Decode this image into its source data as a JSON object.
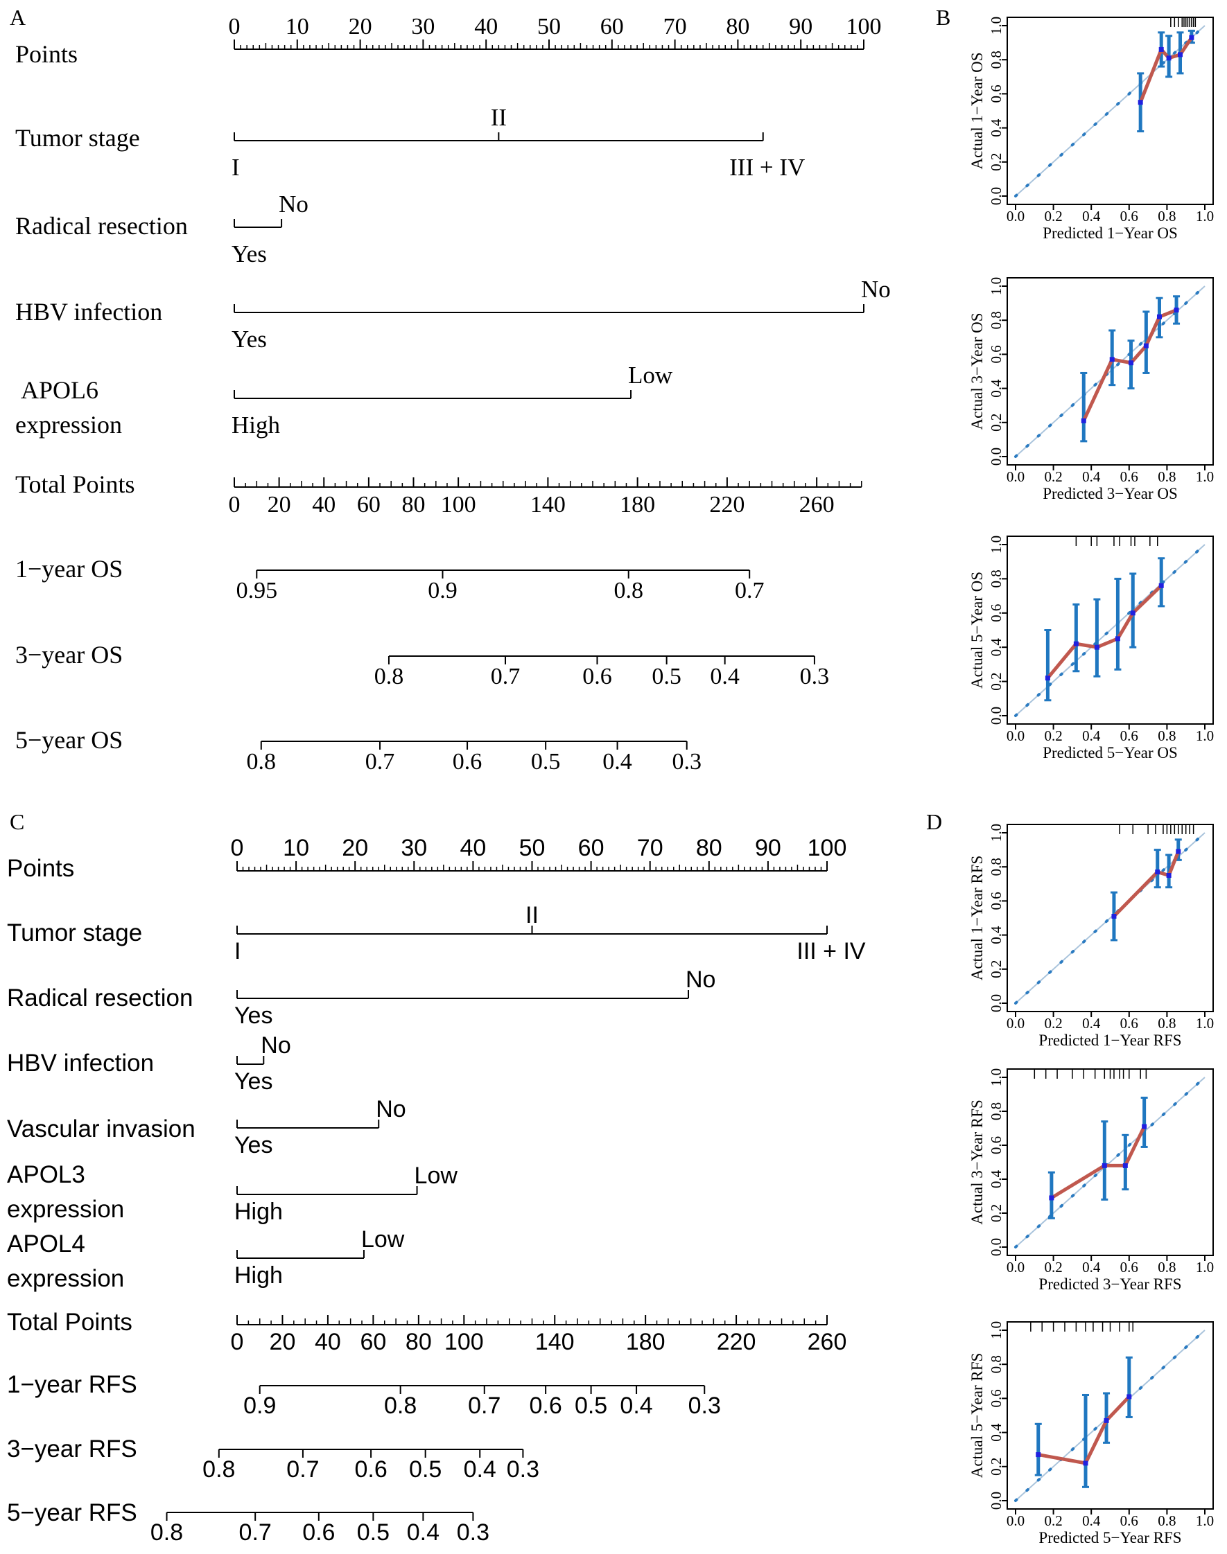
{
  "panels": {
    "A": "A",
    "B": "B",
    "C": "C",
    "D": "D"
  },
  "nomogram_os": {
    "font": "serif",
    "points_label": "Points",
    "points_ticks": [
      "0",
      "10",
      "20",
      "30",
      "40",
      "50",
      "60",
      "70",
      "80",
      "90",
      "100"
    ],
    "variables": [
      {
        "name": [
          "Tumor stage"
        ],
        "levels": [
          {
            "label": "I",
            "points": 0
          },
          {
            "label": "II",
            "points": 42
          },
          {
            "label": "III + IV",
            "points": 84
          }
        ]
      },
      {
        "name": [
          "Radical resection"
        ],
        "levels": [
          {
            "label": "Yes",
            "points": 0
          },
          {
            "label": "No",
            "points": 7.5
          }
        ]
      },
      {
        "name": [
          "HBV infection"
        ],
        "levels": [
          {
            "label": "Yes",
            "points": 0
          },
          {
            "label": "No",
            "points": 100
          }
        ]
      },
      {
        "name": [
          "APOL6",
          "expression"
        ],
        "levels": [
          {
            "label": "High",
            "points": 0
          },
          {
            "label": "Low",
            "points": 63
          }
        ]
      }
    ],
    "total_label": "Total Points",
    "total_max": 280,
    "total_ticks": [
      "0",
      "20",
      "40",
      "60",
      "80",
      "100",
      "140",
      "180",
      "220",
      "260"
    ],
    "outcomes": [
      {
        "name": "1−year OS",
        "ticks": [
          {
            "label": "0.95",
            "total": 10
          },
          {
            "label": "0.9",
            "total": 93
          },
          {
            "label": "0.8",
            "total": 176
          },
          {
            "label": "0.7",
            "total": 230
          }
        ]
      },
      {
        "name": "3−year OS",
        "ticks": [
          {
            "label": "0.8",
            "total": 69
          },
          {
            "label": "0.7",
            "total": 121
          },
          {
            "label": "0.6",
            "total": 162
          },
          {
            "label": "0.5",
            "total": 193
          },
          {
            "label": "0.4",
            "total": 219
          },
          {
            "label": "0.3",
            "total": 259
          }
        ]
      },
      {
        "name": "5−year OS",
        "ticks": [
          {
            "label": "0.8",
            "total": 12
          },
          {
            "label": "0.7",
            "total": 65
          },
          {
            "label": "0.6",
            "total": 104
          },
          {
            "label": "0.5",
            "total": 139
          },
          {
            "label": "0.4",
            "total": 171
          },
          {
            "label": "0.3",
            "total": 202
          }
        ]
      }
    ]
  },
  "nomogram_rfs": {
    "font": "sans",
    "points_label": "Points",
    "points_ticks": [
      "0",
      "10",
      "20",
      "30",
      "40",
      "50",
      "60",
      "70",
      "80",
      "90",
      "100"
    ],
    "variables": [
      {
        "name": [
          "Tumor stage"
        ],
        "levels": [
          {
            "label": "I",
            "points": 0
          },
          {
            "label": "II",
            "points": 50
          },
          {
            "label": "III + IV",
            "points": 100
          }
        ]
      },
      {
        "name": [
          "Radical resection"
        ],
        "levels": [
          {
            "label": "Yes",
            "points": 0
          },
          {
            "label": "No",
            "points": 76.5
          }
        ]
      },
      {
        "name": [
          "HBV infection"
        ],
        "levels": [
          {
            "label": "Yes",
            "points": 0
          },
          {
            "label": "No",
            "points": 4.5
          }
        ]
      },
      {
        "name": [
          "Vascular invasion"
        ],
        "levels": [
          {
            "label": "Yes",
            "points": 0
          },
          {
            "label": "No",
            "points": 24
          }
        ]
      },
      {
        "name": [
          "APOL3",
          "expression"
        ],
        "levels": [
          {
            "label": "High",
            "points": 0
          },
          {
            "label": "Low",
            "points": 30.5
          }
        ]
      },
      {
        "name": [
          "APOL4",
          "expression"
        ],
        "levels": [
          {
            "label": "High",
            "points": 0
          },
          {
            "label": "Low",
            "points": 21.5
          }
        ]
      }
    ],
    "total_label": "Total Points",
    "total_max": 260,
    "total_ticks": [
      "0",
      "20",
      "40",
      "60",
      "80",
      "100",
      "140",
      "180",
      "220",
      "260"
    ],
    "outcomes": [
      {
        "name": "1−year RFS",
        "ticks": [
          {
            "label": "0.9",
            "total": 10
          },
          {
            "label": "0.8",
            "total": 72
          },
          {
            "label": "0.7",
            "total": 109
          },
          {
            "label": "0.6",
            "total": 136
          },
          {
            "label": "0.5",
            "total": 156
          },
          {
            "label": "0.4",
            "total": 176
          },
          {
            "label": "0.3",
            "total": 206
          }
        ]
      },
      {
        "name": "3−year RFS",
        "ticks": [
          {
            "label": "0.8",
            "total": -8
          },
          {
            "label": "0.7",
            "total": 29
          },
          {
            "label": "0.6",
            "total": 59
          },
          {
            "label": "0.5",
            "total": 83
          },
          {
            "label": "0.4",
            "total": 107
          },
          {
            "label": "0.3",
            "total": 126
          }
        ]
      },
      {
        "name": "5−year RFS",
        "ticks": [
          {
            "label": "0.8",
            "total": -31
          },
          {
            "label": "0.7",
            "total": 8
          },
          {
            "label": "0.6",
            "total": 36
          },
          {
            "label": "0.5",
            "total": 60
          },
          {
            "label": "0.4",
            "total": 82
          },
          {
            "label": "0.3",
            "total": 104
          }
        ]
      }
    ]
  },
  "chart_data": [
    {
      "type": "line",
      "panel": "B",
      "title": "",
      "xlabel": "Predicted 1−Year OS",
      "ylabel": "Actual 1−Year OS",
      "xlim": [
        0,
        1
      ],
      "ylim": [
        0,
        1
      ],
      "ticks": [
        "0.0",
        "0.2",
        "0.4",
        "0.6",
        "0.8",
        "1.0"
      ],
      "diagonal": true,
      "rug": [
        0.82,
        0.84,
        0.86,
        0.88,
        0.89,
        0.9,
        0.91,
        0.92,
        0.93,
        0.94,
        0.95
      ],
      "series": [
        {
          "x": [
            0.66,
            0.77,
            0.81,
            0.87,
            0.93
          ],
          "y": [
            0.55,
            0.86,
            0.81,
            0.83,
            0.93
          ],
          "low": [
            0.38,
            0.76,
            0.7,
            0.72,
            0.9
          ],
          "high": [
            0.72,
            0.96,
            0.94,
            0.96,
            0.97
          ]
        }
      ]
    },
    {
      "type": "line",
      "panel": "B",
      "title": "",
      "xlabel": "Predicted 3−Year OS",
      "ylabel": "Actual 3−Year OS",
      "xlim": [
        0,
        1
      ],
      "ylim": [
        0,
        1
      ],
      "ticks": [
        "0.0",
        "0.2",
        "0.4",
        "0.6",
        "0.8",
        "1.0"
      ],
      "diagonal": true,
      "rug": [],
      "series": [
        {
          "x": [
            0.36,
            0.51,
            0.61,
            0.69,
            0.76,
            0.85
          ],
          "y": [
            0.21,
            0.57,
            0.55,
            0.65,
            0.82,
            0.86
          ],
          "low": [
            0.09,
            0.42,
            0.4,
            0.49,
            0.7,
            0.78
          ],
          "high": [
            0.49,
            0.74,
            0.68,
            0.85,
            0.93,
            0.94
          ]
        }
      ]
    },
    {
      "type": "line",
      "panel": "B",
      "title": "",
      "xlabel": "Predicted 5−Year OS",
      "ylabel": "Actual 5−Year OS",
      "xlim": [
        0,
        1
      ],
      "ylim": [
        0,
        1
      ],
      "ticks": [
        "0.0",
        "0.2",
        "0.4",
        "0.6",
        "0.8",
        "1.0"
      ],
      "diagonal": true,
      "rug": [
        0.32,
        0.4,
        0.43,
        0.52,
        0.55,
        0.61,
        0.63,
        0.71,
        0.75
      ],
      "series": [
        {
          "x": [
            0.17,
            0.32,
            0.43,
            0.54,
            0.62,
            0.77
          ],
          "y": [
            0.22,
            0.42,
            0.4,
            0.45,
            0.6,
            0.76
          ],
          "low": [
            0.09,
            0.26,
            0.23,
            0.27,
            0.4,
            0.64
          ],
          "high": [
            0.5,
            0.65,
            0.68,
            0.8,
            0.83,
            0.92
          ]
        }
      ]
    },
    {
      "type": "line",
      "panel": "D",
      "title": "",
      "xlabel": "Predicted 1−Year RFS",
      "ylabel": "Actual 1−Year RFS",
      "xlim": [
        0,
        1
      ],
      "ylim": [
        0,
        1
      ],
      "ticks": [
        "0.0",
        "0.2",
        "0.4",
        "0.6",
        "0.8",
        "1.0"
      ],
      "diagonal": true,
      "rug": [
        0.55,
        0.62,
        0.7,
        0.74,
        0.78,
        0.8,
        0.82,
        0.84,
        0.86,
        0.88,
        0.9,
        0.92,
        0.94
      ],
      "series": [
        {
          "x": [
            0.52,
            0.75,
            0.81,
            0.86
          ],
          "y": [
            0.51,
            0.77,
            0.75,
            0.89
          ],
          "low": [
            0.37,
            0.68,
            0.68,
            0.84
          ],
          "high": [
            0.65,
            0.9,
            0.87,
            0.96
          ]
        }
      ]
    },
    {
      "type": "line",
      "panel": "D",
      "title": "",
      "xlabel": "Predicted 3−Year RFS",
      "ylabel": "Actual 3−Year RFS",
      "xlim": [
        0,
        1
      ],
      "ylim": [
        0,
        1
      ],
      "ticks": [
        "0.0",
        "0.2",
        "0.4",
        "0.6",
        "0.8",
        "1.0"
      ],
      "diagonal": true,
      "rug": [
        0.1,
        0.16,
        0.22,
        0.3,
        0.36,
        0.42,
        0.47,
        0.5,
        0.52,
        0.55,
        0.57,
        0.6,
        0.66,
        0.69
      ],
      "series": [
        {
          "x": [
            0.19,
            0.47,
            0.58,
            0.68
          ],
          "y": [
            0.29,
            0.48,
            0.48,
            0.71
          ],
          "low": [
            0.17,
            0.28,
            0.34,
            0.59
          ],
          "high": [
            0.44,
            0.74,
            0.66,
            0.88
          ]
        }
      ]
    },
    {
      "type": "line",
      "panel": "D",
      "title": "",
      "xlabel": "Predicted 5−Year RFS",
      "ylabel": "Actual 5−Year RFS",
      "xlim": [
        0,
        1
      ],
      "ylim": [
        0,
        1
      ],
      "ticks": [
        "0.0",
        "0.2",
        "0.4",
        "0.6",
        "0.8",
        "1.0"
      ],
      "diagonal": true,
      "rug": [
        0.08,
        0.14,
        0.2,
        0.26,
        0.32,
        0.37,
        0.41,
        0.46,
        0.5,
        0.55,
        0.6,
        0.62
      ],
      "series": [
        {
          "x": [
            0.12,
            0.37,
            0.48,
            0.6
          ],
          "y": [
            0.27,
            0.22,
            0.47,
            0.61
          ],
          "low": [
            0.15,
            0.08,
            0.34,
            0.49
          ],
          "high": [
            0.45,
            0.62,
            0.63,
            0.84
          ]
        }
      ]
    }
  ]
}
